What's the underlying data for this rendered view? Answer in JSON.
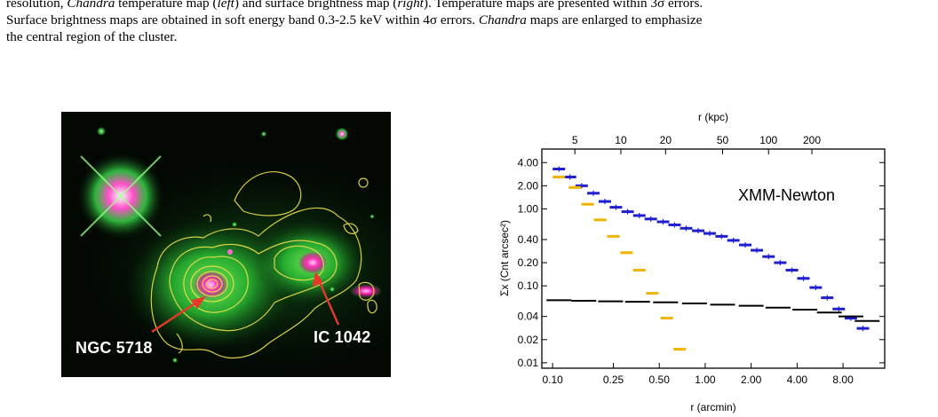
{
  "caption": {
    "line1_a": "resolution, ",
    "line1_b": "Chandra",
    "line1_c": " temperature map (",
    "line1_d": "left",
    "line1_e": ") and surface brightness map (",
    "line1_f": "right",
    "line1_g": "). Temperature maps are presented within 3σ errors.",
    "line2": "Surface brightness maps are obtained in soft energy band 0.3-2.5 keV within 4σ errors. ",
    "line2_b": "Chandra",
    "line2_c": " maps are enlarged to emphasize",
    "line3": "the central region of the cluster."
  },
  "left_image": {
    "label_ngc": "NGC 5718",
    "label_ic": "IC 1042",
    "colors": {
      "background": "#030803",
      "galaxy_green": "#2fd23a",
      "magenta": "#ff2fb8",
      "contour": "#f0e14a",
      "arrow": "#e8382c"
    }
  },
  "chart_data": {
    "type": "scatter",
    "annotation": "XMM-Newton",
    "xlabel": "r (arcmin)",
    "xlabel_top": "r (kpc)",
    "ylabel": "Σx (Cnt arcsec²)",
    "xscale": "log",
    "yscale": "log",
    "xlim": [
      0.085,
      15
    ],
    "ylim": [
      0.0085,
      6
    ],
    "x_ticks": [
      "0.10",
      "0.25",
      "0.50",
      "1.00",
      "2.00",
      "4.00",
      "8.00"
    ],
    "x_tick_values": [
      0.1,
      0.25,
      0.5,
      1.0,
      2.0,
      4.0,
      8.0
    ],
    "top_ticks": [
      "5",
      "10",
      "20",
      "50",
      "100",
      "200"
    ],
    "top_tick_arcmin": [
      0.14,
      0.28,
      0.55,
      1.3,
      2.6,
      5.0
    ],
    "y_ticks": [
      "4.00",
      "2.00",
      "1.00",
      "0.40",
      "0.20",
      "0.10",
      "0.04",
      "0.02",
      "0.01"
    ],
    "y_tick_values": [
      4.0,
      2.0,
      1.0,
      0.4,
      0.2,
      0.1,
      0.04,
      0.02,
      0.01
    ],
    "series": [
      {
        "color": "#1f1fd0",
        "x": [
          0.11,
          0.13,
          0.155,
          0.185,
          0.22,
          0.26,
          0.31,
          0.37,
          0.44,
          0.53,
          0.63,
          0.75,
          0.9,
          1.07,
          1.28,
          1.53,
          1.83,
          2.18,
          2.6,
          3.1,
          3.7,
          4.4,
          5.3,
          6.3,
          7.5,
          9.0,
          10.8
        ],
        "y": [
          3.3,
          2.6,
          2.0,
          1.6,
          1.25,
          1.05,
          0.92,
          0.82,
          0.74,
          0.68,
          0.62,
          0.56,
          0.52,
          0.48,
          0.44,
          0.39,
          0.34,
          0.29,
          0.24,
          0.2,
          0.16,
          0.125,
          0.095,
          0.07,
          0.05,
          0.038,
          0.028
        ]
      },
      {
        "color": "#f0b400",
        "x": [
          0.11,
          0.14,
          0.17,
          0.205,
          0.25,
          0.305,
          0.37,
          0.45,
          0.56,
          0.68
        ],
        "y": [
          2.6,
          1.9,
          1.15,
          0.72,
          0.44,
          0.27,
          0.16,
          0.08,
          0.038,
          0.015
        ]
      },
      {
        "color": "#000000",
        "x": [
          0.11,
          0.16,
          0.24,
          0.36,
          0.55,
          0.85,
          1.3,
          2.0,
          3.0,
          4.5,
          6.5,
          9.0,
          11.5
        ],
        "y": [
          0.065,
          0.064,
          0.063,
          0.062,
          0.061,
          0.059,
          0.057,
          0.055,
          0.052,
          0.049,
          0.045,
          0.04,
          0.035
        ]
      }
    ]
  }
}
